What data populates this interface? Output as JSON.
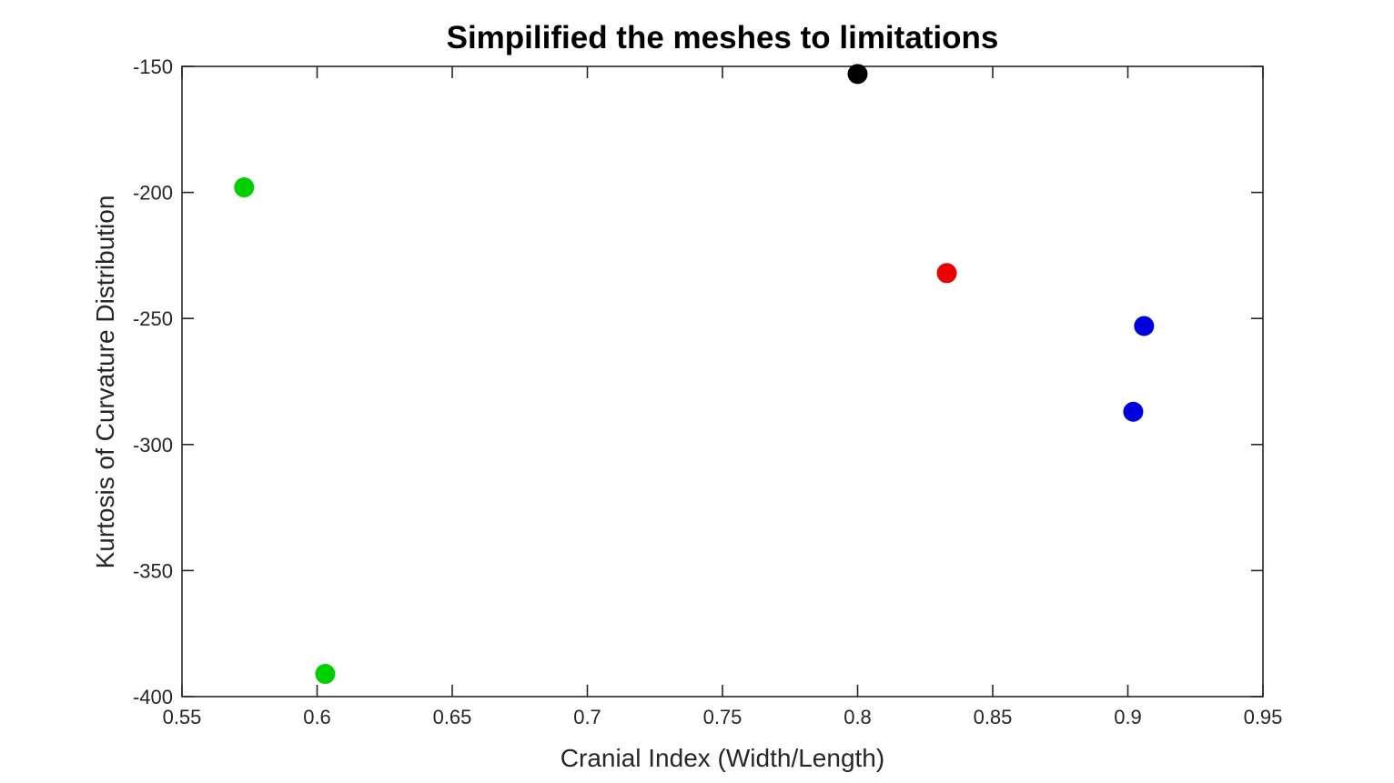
{
  "chart_data": {
    "type": "scatter",
    "title": "Simpilified the meshes to limitations",
    "xlabel": "Cranial Index (Width/Length)",
    "ylabel": "Kurtosis of Curvature Distribution",
    "xlim": [
      0.55,
      0.95
    ],
    "ylim": [
      -400,
      -150
    ],
    "xticks": [
      0.55,
      0.6,
      0.65,
      0.7,
      0.75,
      0.8,
      0.85,
      0.9,
      0.95
    ],
    "xtick_labels": [
      "0.55",
      "0.6",
      "0.65",
      "0.7",
      "0.75",
      "0.8",
      "0.85",
      "0.9",
      "0.95"
    ],
    "yticks": [
      -400,
      -350,
      -300,
      -250,
      -200,
      -150
    ],
    "ytick_labels": [
      "-400",
      "-350",
      "-300",
      "-250",
      "-200",
      "-150"
    ],
    "grid": false,
    "legend": null,
    "marker_radius_px": 11,
    "axis_color": "#262626",
    "title_color": "#000000",
    "background_color": "#ffffff",
    "points": [
      {
        "x": 0.573,
        "y": -198,
        "color": "#00D000",
        "series": "green"
      },
      {
        "x": 0.603,
        "y": -391,
        "color": "#00D000",
        "series": "green"
      },
      {
        "x": 0.8,
        "y": -153,
        "color": "#000000",
        "series": "black"
      },
      {
        "x": 0.833,
        "y": -232,
        "color": "#EE0000",
        "series": "red"
      },
      {
        "x": 0.906,
        "y": -253,
        "color": "#0000DD",
        "series": "blue"
      },
      {
        "x": 0.902,
        "y": -287,
        "color": "#0000DD",
        "series": "blue"
      }
    ]
  }
}
